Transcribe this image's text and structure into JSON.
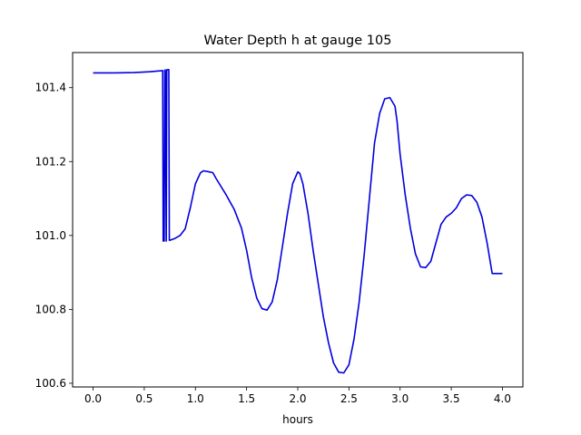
{
  "chart_data": {
    "type": "line",
    "title": "Water Depth h at gauge 105",
    "xlabel": "hours",
    "ylabel": "",
    "xlim": [
      -0.2,
      4.2
    ],
    "ylim": [
      100.59,
      101.495
    ],
    "xticks": [
      0.0,
      0.5,
      1.0,
      1.5,
      2.0,
      2.5,
      3.0,
      3.5,
      4.0
    ],
    "xtick_labels": [
      "0.0",
      "0.5",
      "1.0",
      "1.5",
      "2.0",
      "2.5",
      "3.0",
      "3.5",
      "4.0"
    ],
    "yticks": [
      100.6,
      100.8,
      101.0,
      101.2,
      101.4
    ],
    "ytick_labels": [
      "100.6",
      "100.8",
      "101.0",
      "101.2",
      "101.4"
    ],
    "grid": false,
    "legend": "none",
    "series": [
      {
        "color": "#0000dd",
        "x": [
          0.0,
          0.2,
          0.4,
          0.55,
          0.68,
          0.685,
          0.695,
          0.7,
          0.705,
          0.715,
          0.72,
          0.73,
          0.74,
          0.745,
          0.75,
          0.76,
          0.8,
          0.85,
          0.9,
          0.95,
          1.0,
          1.05,
          1.08,
          1.12,
          1.17,
          1.2,
          1.3,
          1.38,
          1.45,
          1.5,
          1.55,
          1.6,
          1.65,
          1.7,
          1.75,
          1.8,
          1.85,
          1.9,
          1.95,
          2.0,
          2.02,
          2.05,
          2.1,
          2.15,
          2.2,
          2.25,
          2.3,
          2.35,
          2.4,
          2.45,
          2.5,
          2.55,
          2.6,
          2.65,
          2.7,
          2.75,
          2.8,
          2.85,
          2.9,
          2.95,
          2.97,
          3.0,
          3.05,
          3.1,
          3.15,
          3.2,
          3.25,
          3.3,
          3.35,
          3.4,
          3.45,
          3.5,
          3.55,
          3.6,
          3.65,
          3.7,
          3.75,
          3.8,
          3.85,
          3.9,
          3.95,
          4.0
        ],
        "y": [
          101.44,
          101.44,
          101.441,
          101.443,
          101.446,
          100.985,
          100.985,
          101.447,
          101.448,
          100.985,
          101.448,
          101.449,
          101.449,
          100.987,
          100.987,
          100.988,
          100.992,
          101.0,
          101.018,
          101.075,
          101.14,
          101.17,
          101.175,
          101.173,
          101.17,
          101.155,
          101.11,
          101.07,
          101.02,
          100.96,
          100.885,
          100.83,
          100.802,
          100.798,
          100.82,
          100.88,
          100.97,
          101.06,
          101.14,
          101.172,
          101.168,
          101.14,
          101.06,
          100.96,
          100.87,
          100.78,
          100.71,
          100.655,
          100.63,
          100.628,
          100.65,
          100.72,
          100.82,
          100.95,
          101.1,
          101.25,
          101.33,
          101.37,
          101.373,
          101.35,
          101.31,
          101.22,
          101.11,
          101.02,
          100.95,
          100.915,
          100.913,
          100.93,
          100.98,
          101.03,
          101.05,
          101.06,
          101.075,
          101.1,
          101.11,
          101.108,
          101.09,
          101.05,
          100.98,
          100.897,
          100.897,
          100.897
        ]
      }
    ]
  }
}
